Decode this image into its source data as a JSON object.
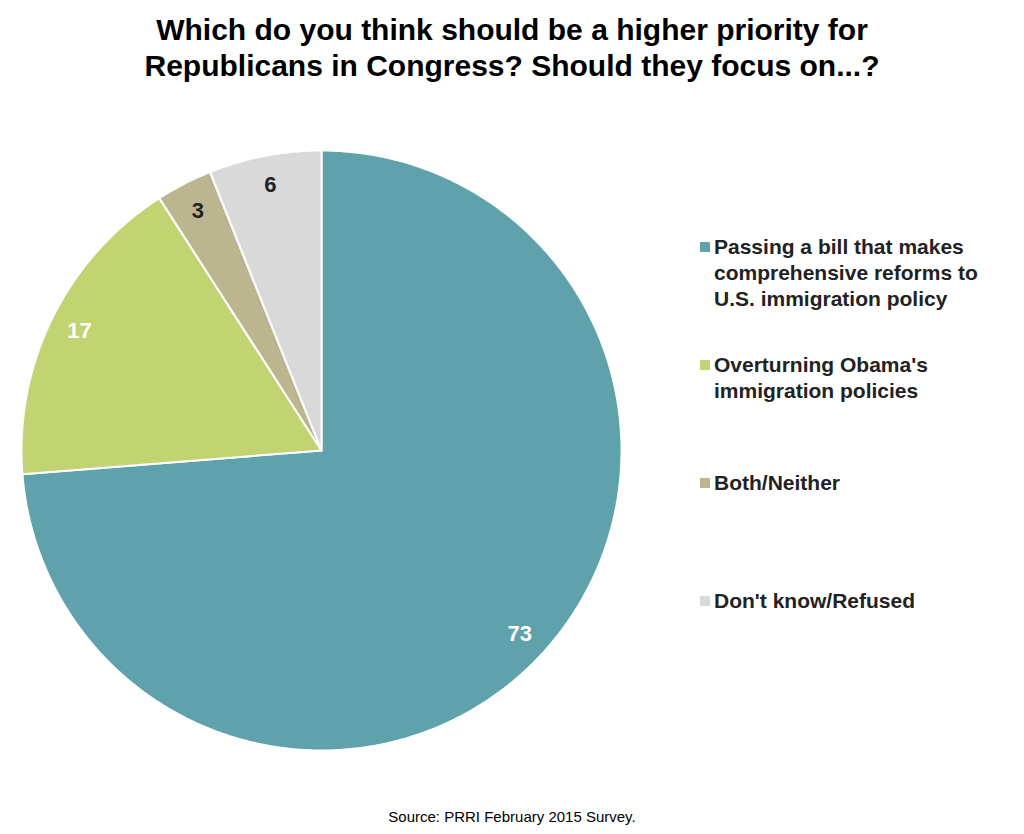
{
  "chart_data": {
    "type": "pie",
    "title": "Which do you think should be a higher priority for Republicans in Congress? Should they focus on...?",
    "categories": [
      "Passing a bill that makes comprehensive reforms to U.S. immigration policy",
      "Overturning Obama's immigration policies",
      "Both/Neither",
      "Don't know/Refused"
    ],
    "values": [
      73,
      17,
      3,
      6
    ],
    "colors": [
      "#5fa2ab",
      "#c2d372",
      "#bbb68f",
      "#d9d9d9"
    ],
    "data_labels": true,
    "legend": "right",
    "caption": "Source: PRRI February 2015 Survey."
  }
}
